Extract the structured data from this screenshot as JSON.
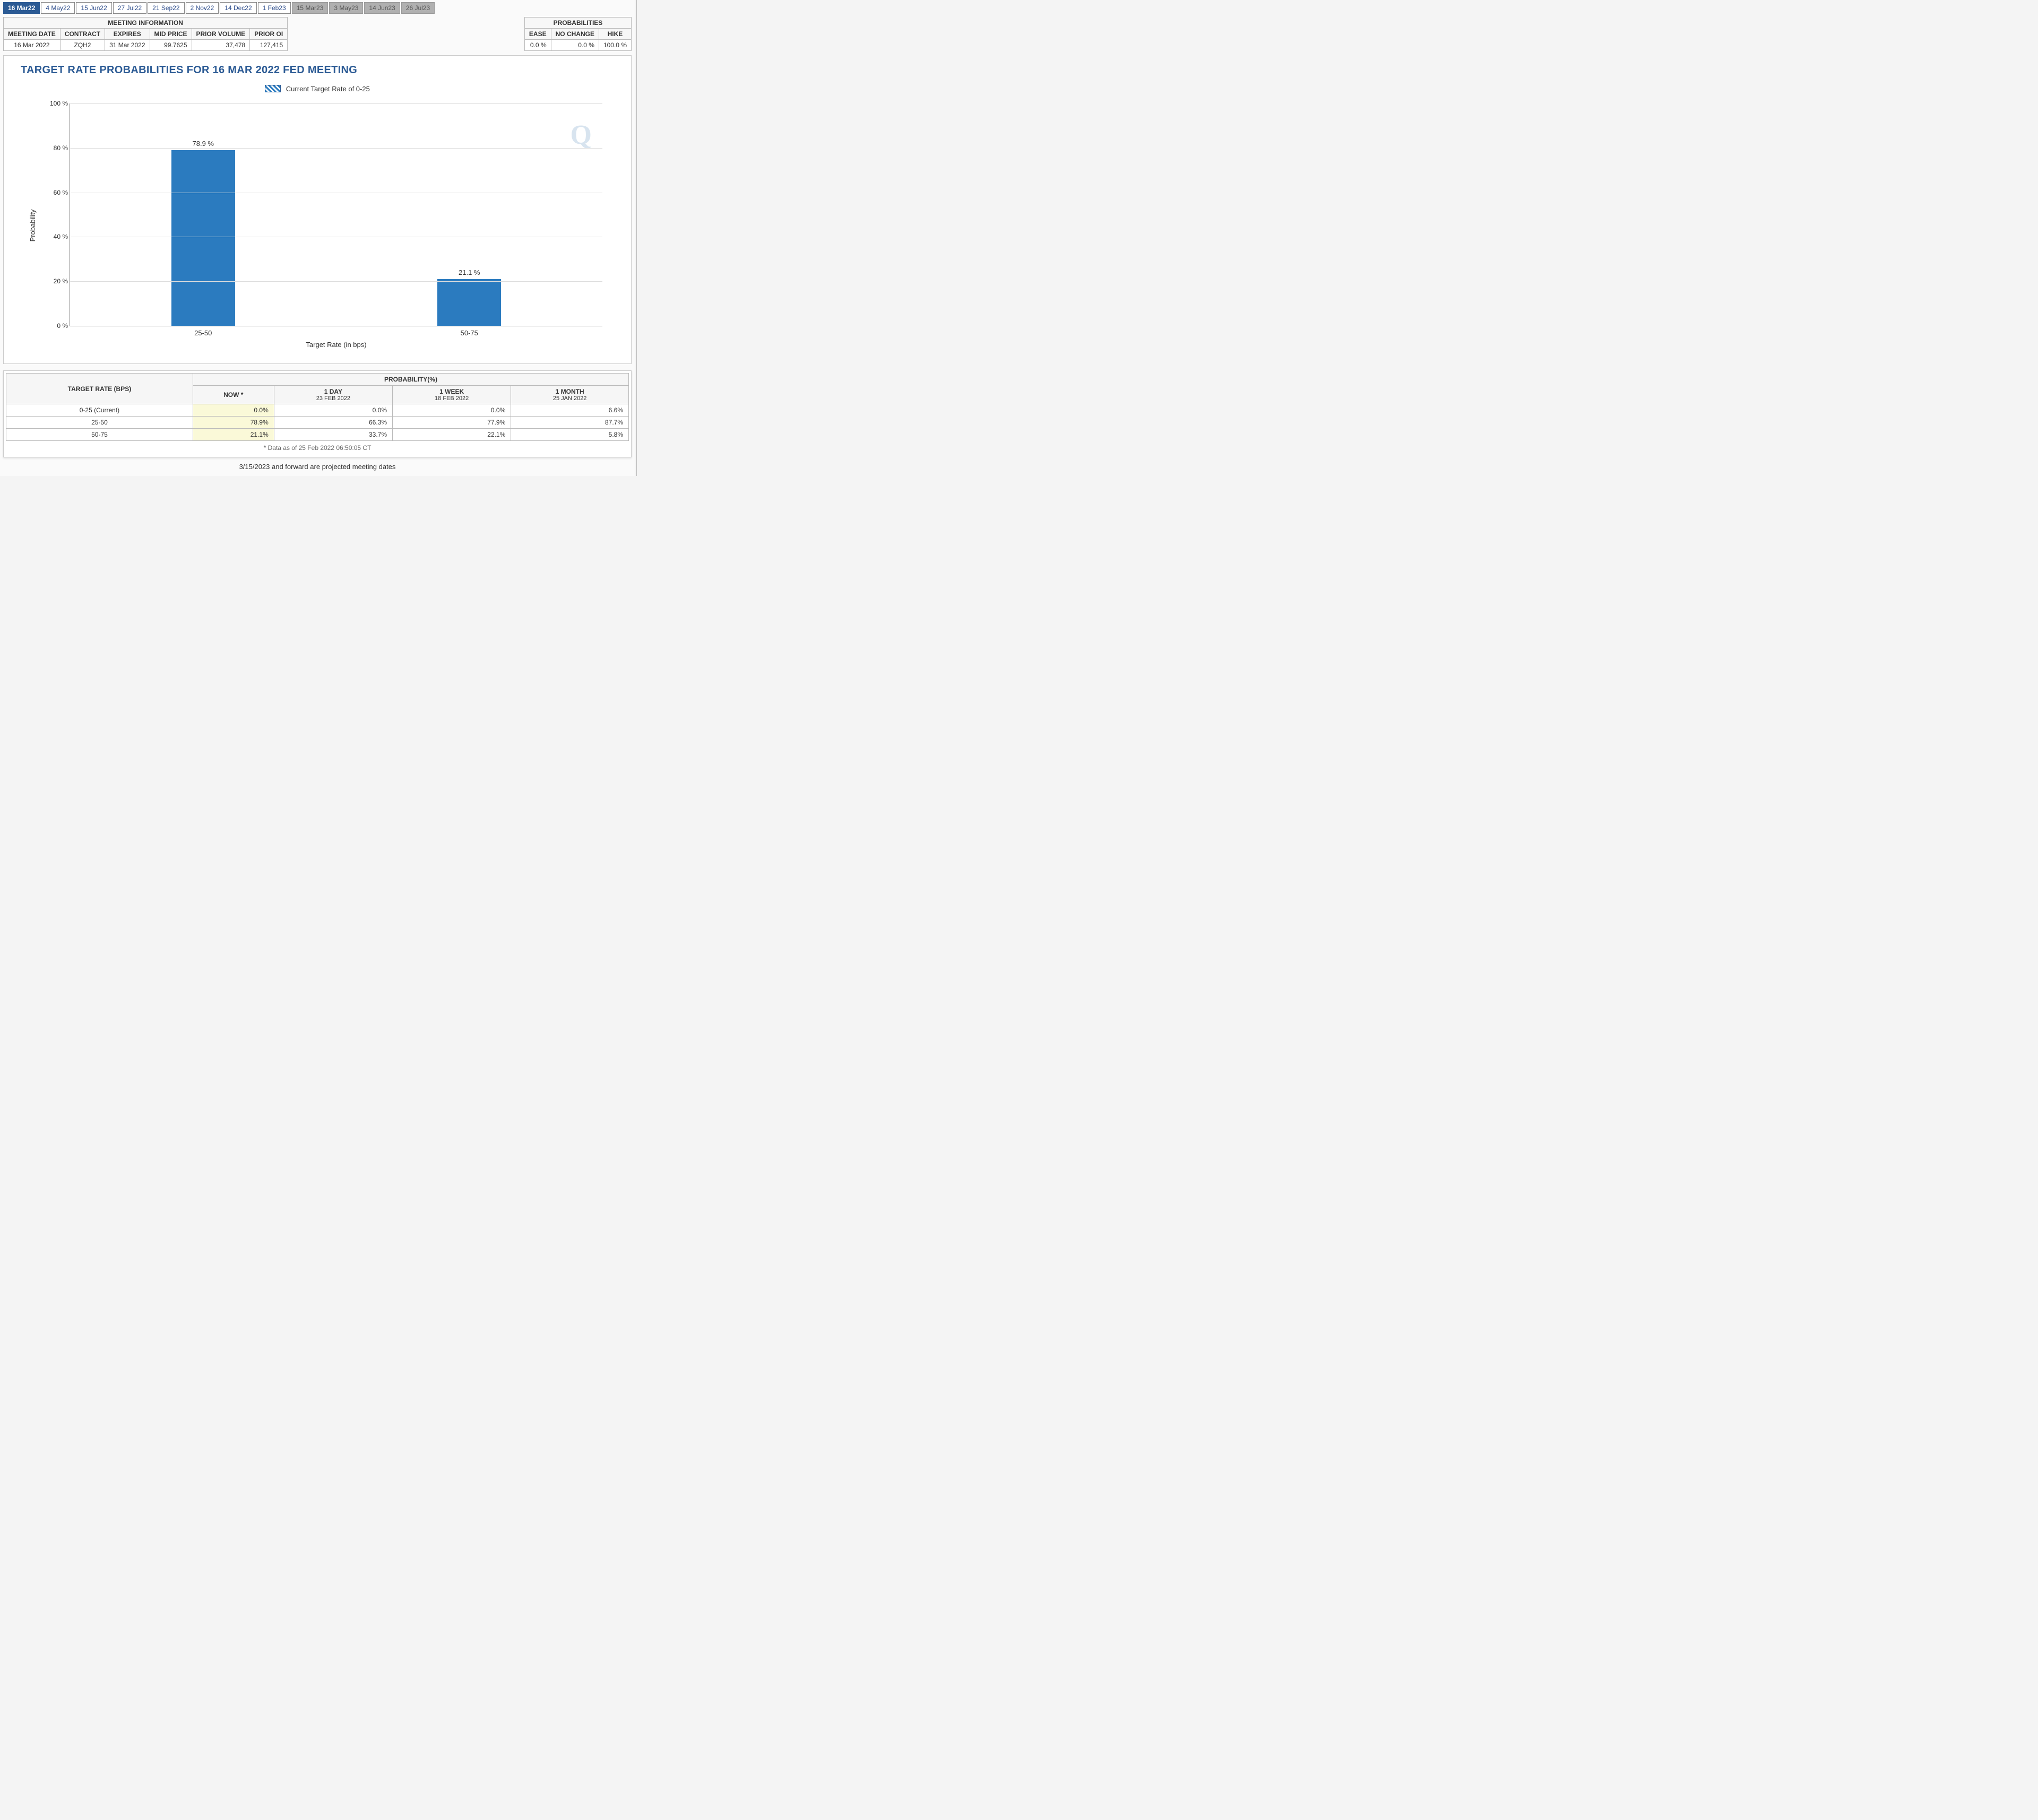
{
  "tabs": [
    {
      "label": "16 Mar22",
      "state": "active"
    },
    {
      "label": "4 May22",
      "state": "normal"
    },
    {
      "label": "15 Jun22",
      "state": "normal"
    },
    {
      "label": "27 Jul22",
      "state": "normal"
    },
    {
      "label": "21 Sep22",
      "state": "normal"
    },
    {
      "label": "2 Nov22",
      "state": "normal"
    },
    {
      "label": "14 Dec22",
      "state": "normal"
    },
    {
      "label": "1 Feb23",
      "state": "normal"
    },
    {
      "label": "15 Mar23",
      "state": "projected"
    },
    {
      "label": "3 May23",
      "state": "projected"
    },
    {
      "label": "14 Jun23",
      "state": "projected"
    },
    {
      "label": "26 Jul23",
      "state": "projected"
    }
  ],
  "meeting_info": {
    "title": "MEETING INFORMATION",
    "headers": [
      "MEETING DATE",
      "CONTRACT",
      "EXPIRES",
      "MID PRICE",
      "PRIOR VOLUME",
      "PRIOR OI"
    ],
    "row": [
      "16 Mar 2022",
      "ZQH2",
      "31 Mar 2022",
      "99.7625",
      "37,478",
      "127,415"
    ]
  },
  "prob_info": {
    "title": "PROBABILITIES",
    "headers": [
      "EASE",
      "NO CHANGE",
      "HIKE"
    ],
    "row": [
      "0.0 %",
      "0.0 %",
      "100.0 %"
    ]
  },
  "chart": {
    "title": "TARGET RATE PROBABILITIES FOR 16 MAR 2022 FED MEETING",
    "legend_text": "Current Target Rate of 0-25",
    "ylabel": "Probability",
    "xlabel": "Target Rate (in bps)",
    "type": "bar",
    "ylim": [
      0,
      100
    ],
    "ytick_step": 20,
    "categories": [
      "25-50",
      "50-75"
    ],
    "values": [
      78.9,
      21.1
    ],
    "value_labels": [
      "78.9 %",
      "21.1 %"
    ],
    "bar_color": "#2b7bbf",
    "grid_color": "#dddddd",
    "axis_color": "#888888",
    "background_color": "#ffffff",
    "title_color": "#2b5a94",
    "title_fontsize": 20,
    "label_fontsize": 13,
    "bar_width_pct": 18
  },
  "history": {
    "row_header": "TARGET RATE (BPS)",
    "group_header": "PROBABILITY(%)",
    "cols": [
      {
        "label": "NOW *",
        "sub": ""
      },
      {
        "label": "1 DAY",
        "sub": "23 FEB 2022"
      },
      {
        "label": "1 WEEK",
        "sub": "18 FEB 2022"
      },
      {
        "label": "1 MONTH",
        "sub": "25 JAN 2022"
      }
    ],
    "rows": [
      {
        "label": "0-25 (Current)",
        "vals": [
          "0.0%",
          "0.0%",
          "0.0%",
          "6.6%"
        ]
      },
      {
        "label": "25-50",
        "vals": [
          "78.9%",
          "66.3%",
          "77.9%",
          "87.7%"
        ]
      },
      {
        "label": "50-75",
        "vals": [
          "21.1%",
          "33.7%",
          "22.1%",
          "5.8%"
        ]
      }
    ],
    "footnote": "* Data as of 25 Feb 2022 06:50:05 CT"
  },
  "projected_note": "3/15/2023 and forward are projected meeting dates",
  "watermark": "Q"
}
